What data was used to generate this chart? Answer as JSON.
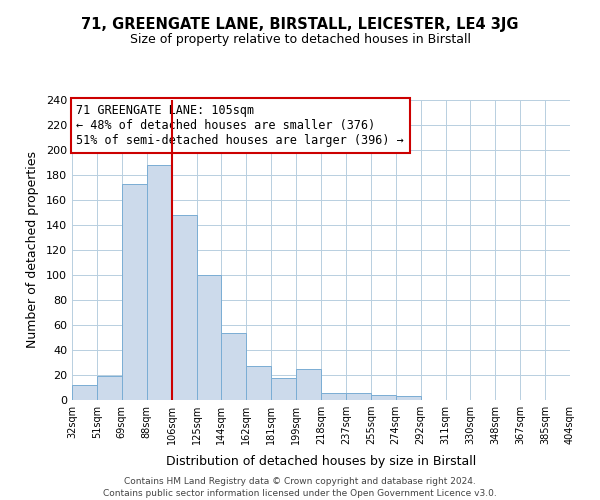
{
  "title": "71, GREENGATE LANE, BIRSTALL, LEICESTER, LE4 3JG",
  "subtitle": "Size of property relative to detached houses in Birstall",
  "xlabel": "Distribution of detached houses by size in Birstall",
  "ylabel": "Number of detached properties",
  "bin_labels": [
    "32sqm",
    "51sqm",
    "69sqm",
    "88sqm",
    "106sqm",
    "125sqm",
    "144sqm",
    "162sqm",
    "181sqm",
    "199sqm",
    "218sqm",
    "237sqm",
    "255sqm",
    "274sqm",
    "292sqm",
    "311sqm",
    "330sqm",
    "348sqm",
    "367sqm",
    "385sqm",
    "404sqm"
  ],
  "bar_values": [
    12,
    19,
    173,
    188,
    148,
    100,
    54,
    27,
    18,
    25,
    6,
    6,
    4,
    3,
    0,
    0,
    0,
    0,
    0,
    0
  ],
  "bar_color": "#ccdaeb",
  "bar_edge_color": "#7aadd4",
  "vline_x_index": 4,
  "vline_color": "#cc0000",
  "annotation_text": "71 GREENGATE LANE: 105sqm\n← 48% of detached houses are smaller (376)\n51% of semi-detached houses are larger (396) →",
  "annotation_box_color": "#ffffff",
  "annotation_box_edge_color": "#cc0000",
  "ylim": [
    0,
    240
  ],
  "yticks": [
    0,
    20,
    40,
    60,
    80,
    100,
    120,
    140,
    160,
    180,
    200,
    220,
    240
  ],
  "footer_line1": "Contains HM Land Registry data © Crown copyright and database right 2024.",
  "footer_line2": "Contains public sector information licensed under the Open Government Licence v3.0.",
  "background_color": "#ffffff",
  "grid_color": "#b8cfe0"
}
